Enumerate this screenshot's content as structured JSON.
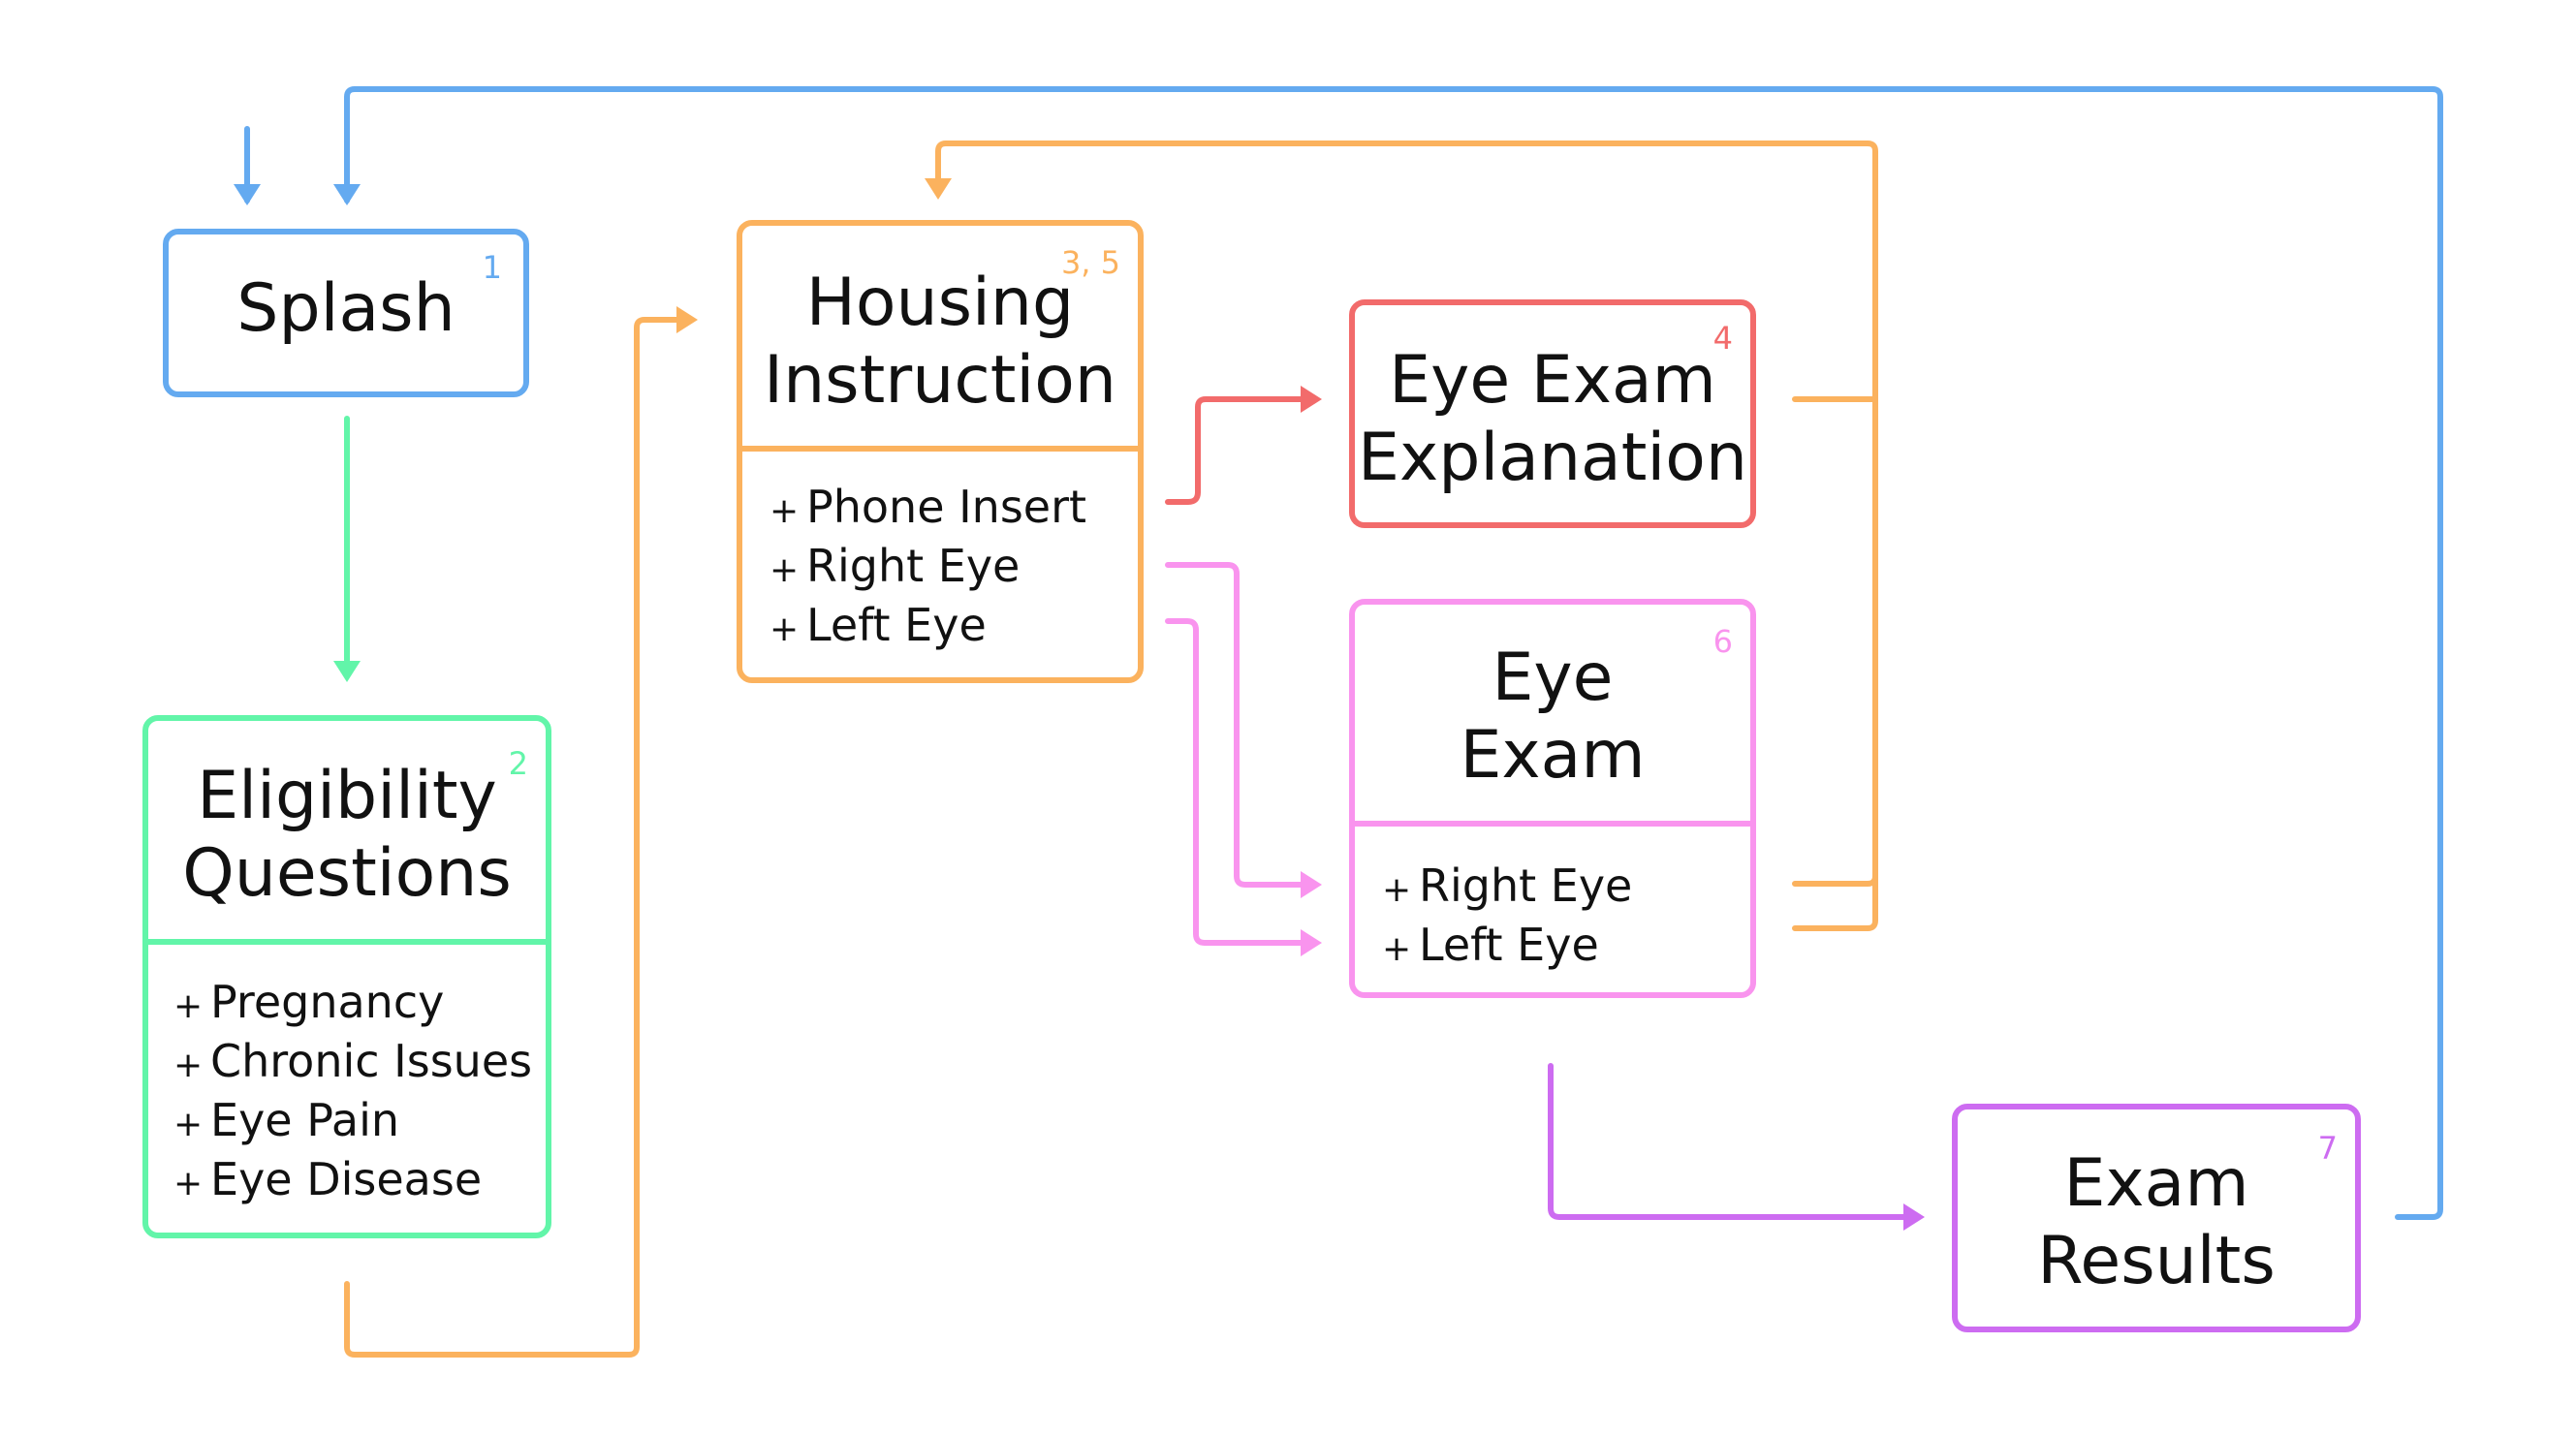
{
  "colors": {
    "splash": "#64aaf0",
    "eligibility": "#62f5a9",
    "housing": "#fbb25e",
    "explanation": "#f26b6b",
    "eye_exam": "#f994ee",
    "results": "#cd6cf1"
  },
  "nodes": {
    "splash": {
      "title": "Splash",
      "number": "1"
    },
    "eligibility": {
      "title": [
        "Eligibility",
        "Questions"
      ],
      "number": "2",
      "items": [
        "Pregnancy",
        "Chronic Issues",
        "Eye Pain",
        "Eye Disease"
      ]
    },
    "housing": {
      "title": [
        "Housing",
        "Instruction"
      ],
      "number": "3, 5",
      "items": [
        "Phone Insert",
        "Right Eye",
        "Left Eye"
      ]
    },
    "explanation": {
      "title": [
        "Eye Exam",
        "Explanation"
      ],
      "number": "4"
    },
    "eye_exam": {
      "title": [
        "Eye",
        "Exam"
      ],
      "number": "6",
      "items": [
        "Right Eye",
        "Left Eye"
      ]
    },
    "results": {
      "title": [
        "Exam",
        "Results"
      ],
      "number": "7"
    }
  }
}
